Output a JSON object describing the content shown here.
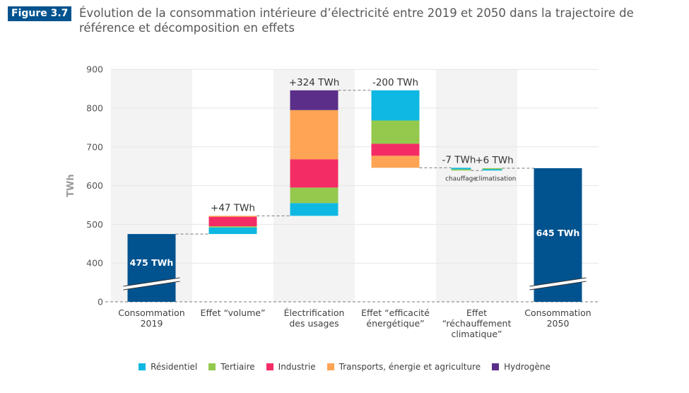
{
  "figure": {
    "badge": "Figure 3.7",
    "title": "Évolution de la consommation intérieure d’électricité entre 2019 et 2050 dans la trajectoire de référence et décomposition en effets"
  },
  "colors": {
    "total_bar": "#00538f",
    "Résidentiel": "#0fb8e2",
    "Tertiaire": "#94c94e",
    "Industrie": "#f42c65",
    "Transports, énergie et agriculture": "#fea454",
    "Hydrogène": "#5b2e89",
    "band": "#f3f3f3",
    "grid": "#e6e6e6",
    "connector": "#7a7a7a"
  },
  "chart_data": {
    "type": "bar",
    "subtype": "waterfall-stacked",
    "title": "Évolution de la consommation intérieure d’électricité entre 2019 et 2050 dans la trajectoire de référence et décomposition en effets",
    "ylabel": "TWh",
    "xlabel": "",
    "yticks": [
      "0",
      "400",
      "500",
      "600",
      "700",
      "800",
      "900"
    ],
    "ylim": [
      0,
      900
    ],
    "axis_break": [
      0,
      400
    ],
    "grid": true,
    "legend_position": "bottom",
    "categories": [
      "Consommation 2019",
      "Effet “volume”",
      "Électrification des usages",
      "Effet “efficacité énergétique”",
      "Effet “réchauffement climatique”",
      "Consommation 2050"
    ],
    "category_lines": [
      [
        "Consommation",
        "2019"
      ],
      [
        "Effet “volume”"
      ],
      [
        "Électrification",
        "des usages"
      ],
      [
        "Effet “efficacité",
        "énergétique”"
      ],
      [
        "Effet",
        "“réchauffement",
        "climatique”"
      ],
      [
        "Consommation",
        "2050"
      ]
    ],
    "series_names": [
      "Résidentiel",
      "Tertiaire",
      "Industrie",
      "Transports, énergie et agriculture",
      "Hydrogène"
    ],
    "totals": [
      {
        "category_index": 0,
        "value": 475,
        "label": "475 TWh"
      },
      {
        "category_index": 5,
        "value": 645,
        "label": "645 TWh"
      }
    ],
    "effects": [
      {
        "category_index": 1,
        "start": 475,
        "total": 47,
        "label": "+47 TWh",
        "components": {
          "Résidentiel": 17,
          "Tertiaire": 3,
          "Industrie": 25,
          "Transports, énergie et agriculture": 2,
          "Hydrogène": 0
        }
      },
      {
        "category_index": 2,
        "start": 522,
        "total": 324,
        "label": "+324 TWh",
        "components": {
          "Résidentiel": 33,
          "Tertiaire": 40,
          "Industrie": 73,
          "Transports, énergie et agriculture": 127,
          "Hydrogène": 51
        }
      },
      {
        "category_index": 3,
        "start": 846,
        "total": -200,
        "label": "-200 TWh",
        "components": {
          "Résidentiel": -78,
          "Tertiaire": -60,
          "Industrie": -31,
          "Transports, énergie et agriculture": -31,
          "Hydrogène": 0
        }
      },
      {
        "category_index": 4,
        "sub": "chauffage",
        "start": 646,
        "total": -7,
        "label": "-7 TWh",
        "components": {
          "Résidentiel": -4,
          "Tertiaire": -3
        }
      },
      {
        "category_index": 4,
        "sub": "climatisation",
        "start": 639,
        "total": 6,
        "label": "+6 TWh",
        "components": {
          "Résidentiel": 4,
          "Tertiaire": 2
        }
      }
    ],
    "sublabels": [
      "chauffage",
      "climatisation"
    ]
  },
  "legend": [
    {
      "label": "Résidentiel",
      "color": "#0fb8e2"
    },
    {
      "label": "Tertiaire",
      "color": "#94c94e"
    },
    {
      "label": "Industrie",
      "color": "#f42c65"
    },
    {
      "label": "Transports, énergie et agriculture",
      "color": "#fea454"
    },
    {
      "label": "Hydrogène",
      "color": "#5b2e89"
    }
  ]
}
